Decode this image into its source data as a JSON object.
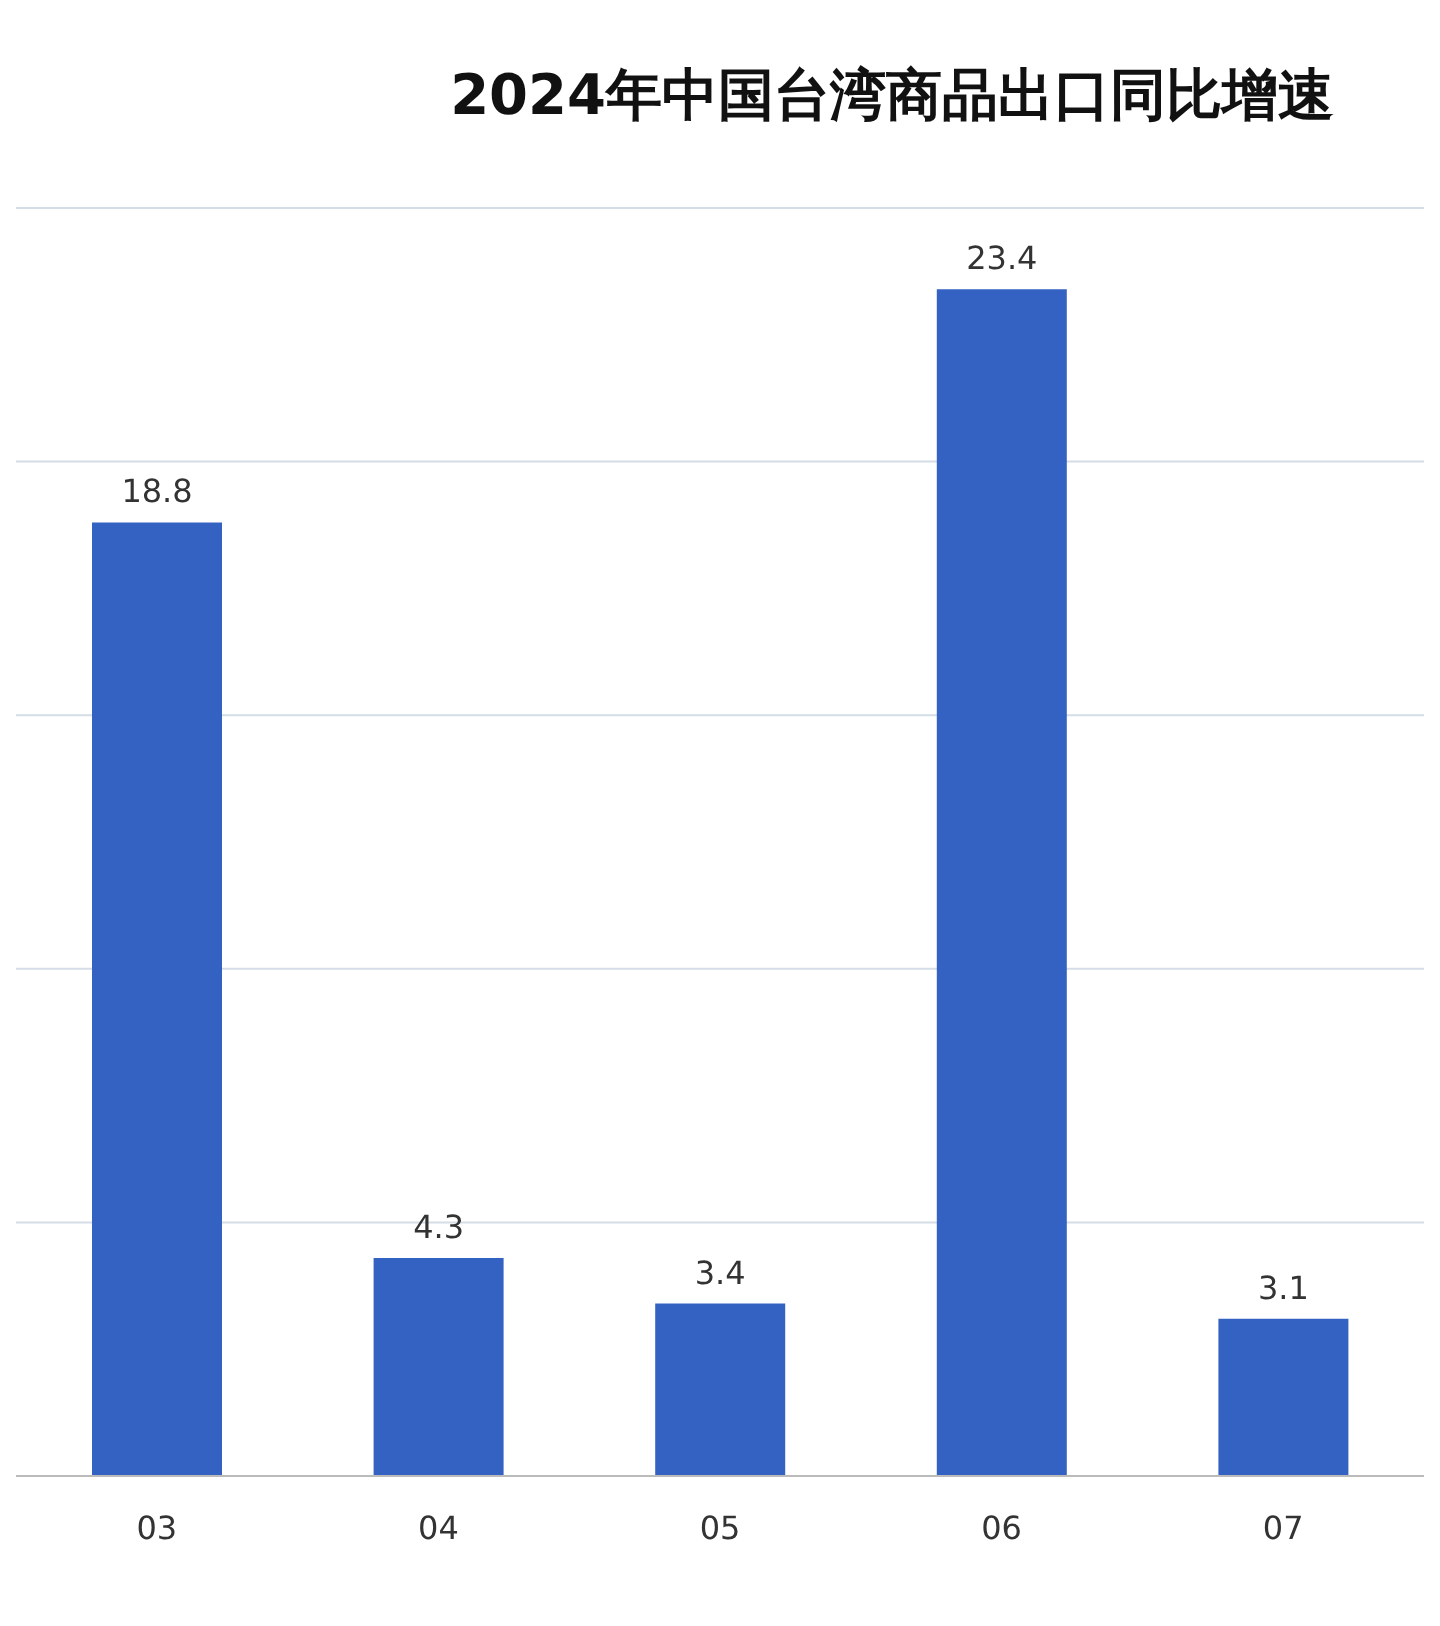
{
  "chart_data": {
    "type": "bar",
    "title": "2024年中国台湾商品出口同比增速",
    "categories": [
      "03",
      "04",
      "05",
      "06",
      "07"
    ],
    "values": [
      18.8,
      4.3,
      3.4,
      23.4,
      3.1
    ],
    "color": "#3462c2",
    "grid": "y",
    "data_labels": true,
    "tick_labels": "x"
  }
}
